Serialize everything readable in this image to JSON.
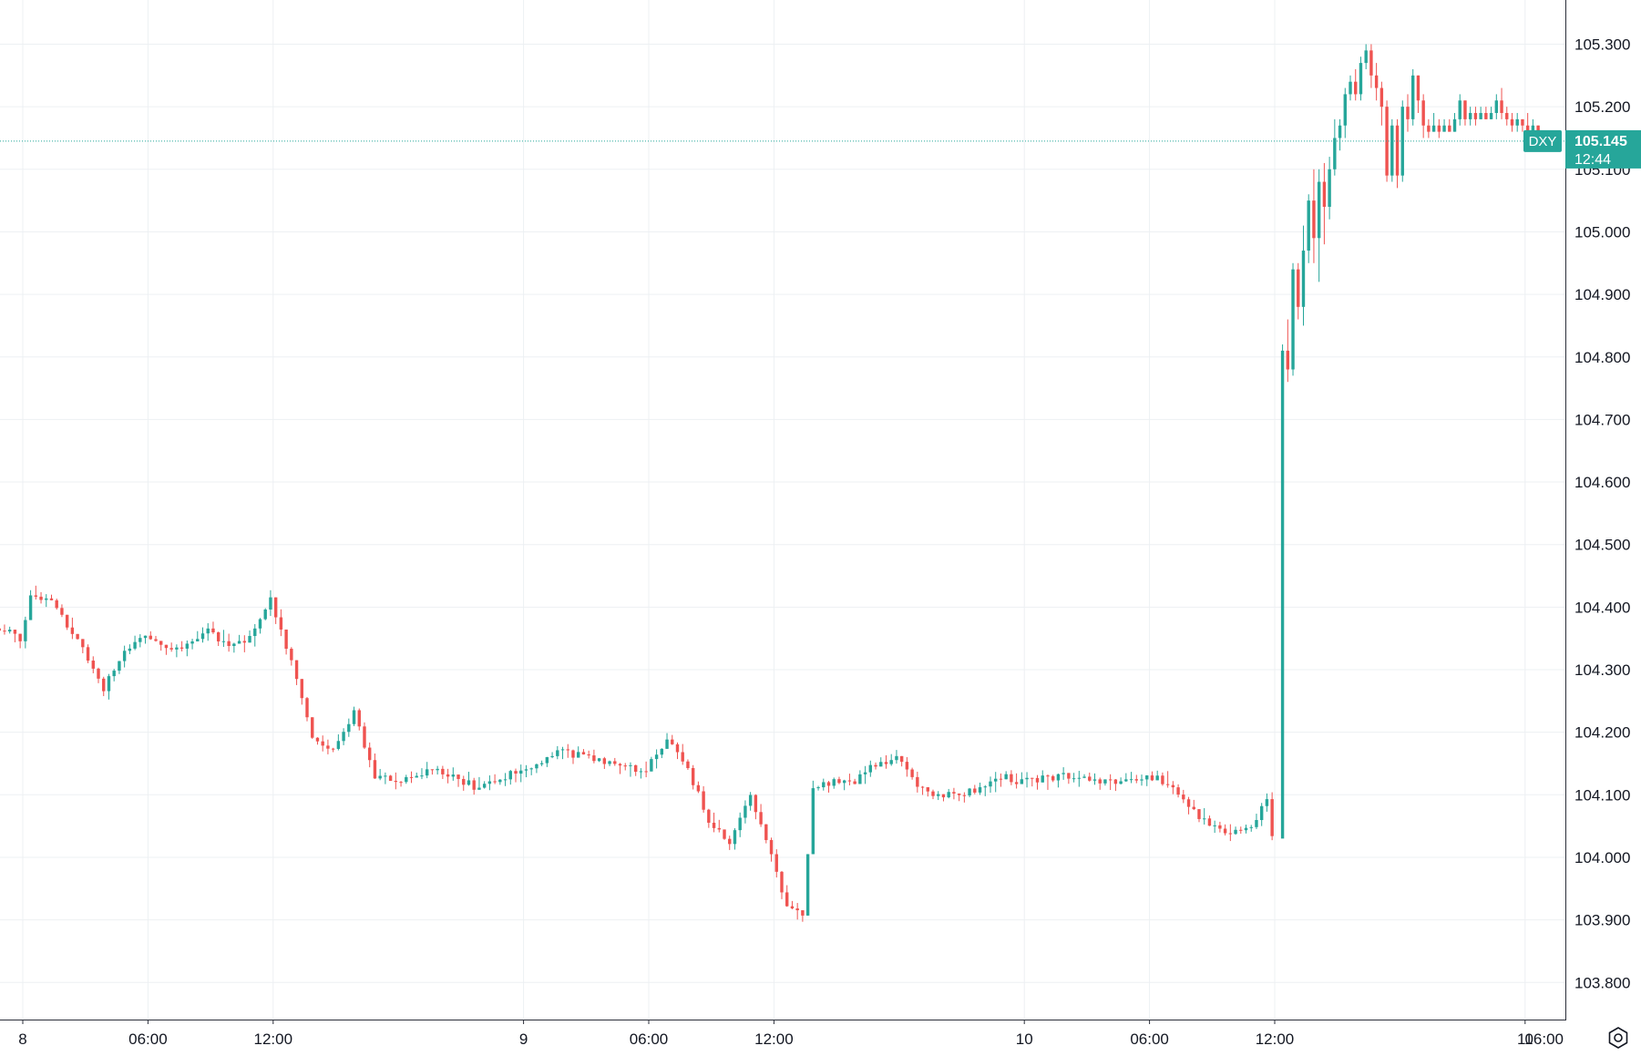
{
  "chart_data": {
    "type": "candlestick",
    "symbol": "DXY",
    "last_price": "105.145",
    "countdown": "12:44",
    "y_axis": {
      "ticks": [
        "103.800",
        "103.900",
        "104.000",
        "104.100",
        "104.200",
        "104.300",
        "104.400",
        "104.500",
        "104.600",
        "104.700",
        "104.800",
        "104.900",
        "105.000",
        "105.100",
        "105.200",
        "105.300"
      ],
      "range": [
        103.765,
        105.335
      ]
    },
    "x_axis": {
      "ticks": [
        "8",
        "06:00",
        "12:00",
        "9",
        "06:00",
        "12:00",
        "10",
        "06:00",
        "12:00",
        "11",
        "06:00"
      ]
    },
    "candle_interval": "15m",
    "grid": true,
    "colors": {
      "up": "#26a69a",
      "down": "#ef5350",
      "grid": "#edf0f3",
      "price_line": "#26a69a",
      "axis_text": "#131722"
    },
    "anchors": [
      [
        "8 -01:45",
        104.36
      ],
      [
        "8 -01:15",
        104.37
      ],
      [
        "8 00:00",
        104.35
      ],
      [
        "8 00:30",
        104.42
      ],
      [
        "8 01:30",
        104.41
      ],
      [
        "8 03:00",
        104.33
      ],
      [
        "8 04:00",
        104.27
      ],
      [
        "8 05:00",
        104.33
      ],
      [
        "8 06:00",
        104.35
      ],
      [
        "8 07:00",
        104.33
      ],
      [
        "8 08:00",
        104.34
      ],
      [
        "8 09:00",
        104.36
      ],
      [
        "8 10:00",
        104.34
      ],
      [
        "8 11:00",
        104.35
      ],
      [
        "8 12:00",
        104.41
      ],
      [
        "8 13:00",
        104.31
      ],
      [
        "8 14:00",
        104.19
      ],
      [
        "8 15:00",
        104.17
      ],
      [
        "8 16:00",
        104.23
      ],
      [
        "8 17:00",
        104.13
      ],
      [
        "8 18:00",
        104.12
      ],
      [
        "8 20:00",
        104.14
      ],
      [
        "8 22:00",
        104.11
      ],
      [
        "8 24:00",
        104.14
      ],
      [
        "9 02:00",
        104.17
      ],
      [
        "9 04:00",
        104.15
      ],
      [
        "9 06:00",
        104.14
      ],
      [
        "9 07:00",
        104.19
      ],
      [
        "9 08:00",
        104.14
      ],
      [
        "9 09:00",
        104.06
      ],
      [
        "9 10:00",
        104.02
      ],
      [
        "9 11:00",
        104.1
      ],
      [
        "9 12:00",
        104.0
      ],
      [
        "9 12:45",
        103.92
      ],
      [
        "9 13:30",
        103.91
      ],
      [
        "9 14:00",
        104.11
      ],
      [
        "9 15:00",
        104.12
      ],
      [
        "9 16:00",
        104.12
      ],
      [
        "9 17:00",
        104.15
      ],
      [
        "9 18:00",
        104.16
      ],
      [
        "9 19:00",
        104.11
      ],
      [
        "9 20:00",
        104.1
      ],
      [
        "9 21:00",
        104.1
      ],
      [
        "9 22:00",
        104.11
      ],
      [
        "9 23:00",
        104.13
      ],
      [
        "9 24:00",
        104.12
      ],
      [
        "10 02:00",
        104.13
      ],
      [
        "10 04:00",
        104.12
      ],
      [
        "10 06:00",
        104.13
      ],
      [
        "10 07:00",
        104.12
      ],
      [
        "10 08:00",
        104.08
      ],
      [
        "10 09:00",
        104.05
      ],
      [
        "10 10:00",
        104.04
      ],
      [
        "10 11:00",
        104.05
      ],
      [
        "10 11:45",
        104.09
      ],
      [
        "10 12:00",
        104.03
      ]
    ],
    "tail": [
      [
        "10 12:15",
        104.03,
        104.81,
        104.64,
        104.82
      ],
      [
        "10 12:30",
        104.81,
        104.78,
        104.76,
        104.86
      ],
      [
        "10 12:45",
        104.78,
        104.94,
        104.77,
        104.95
      ],
      [
        "10 13:00",
        104.94,
        104.88,
        104.86,
        104.95
      ],
      [
        "10 13:15",
        104.88,
        104.97,
        104.85,
        105.01
      ],
      [
        "10 13:30",
        104.97,
        105.05,
        104.95,
        105.06
      ],
      [
        "10 13:45",
        105.05,
        104.99,
        104.95,
        105.1
      ],
      [
        "10 14:00",
        104.99,
        105.08,
        104.92,
        105.1
      ],
      [
        "10 14:15",
        105.08,
        105.04,
        104.98,
        105.11
      ],
      [
        "10 14:30",
        105.04,
        105.1,
        105.02,
        105.12
      ],
      [
        "10 14:45",
        105.1,
        105.15,
        105.09,
        105.18
      ],
      [
        "10 15:00",
        105.15,
        105.17,
        105.13,
        105.18
      ],
      [
        "10 15:15",
        105.17,
        105.22,
        105.15,
        105.23
      ],
      [
        "10 15:30",
        105.22,
        105.24,
        105.21,
        105.25
      ],
      [
        "10 15:45",
        105.24,
        105.22,
        105.21,
        105.26
      ],
      [
        "10 16:00",
        105.22,
        105.27,
        105.21,
        105.28
      ],
      [
        "10 16:15",
        105.27,
        105.29,
        105.26,
        105.3
      ],
      [
        "10 16:30",
        105.29,
        105.25,
        105.23,
        105.3
      ],
      [
        "10 16:45",
        105.25,
        105.23,
        105.21,
        105.27
      ],
      [
        "10 17:00",
        105.23,
        105.2,
        105.17,
        105.24
      ],
      [
        "10 17:15",
        105.2,
        105.09,
        105.08,
        105.21
      ],
      [
        "10 17:30",
        105.09,
        105.17,
        105.08,
        105.18
      ],
      [
        "10 17:45",
        105.17,
        105.09,
        105.07,
        105.18
      ],
      [
        "10 18:00",
        105.09,
        105.2,
        105.08,
        105.21
      ],
      [
        "10 18:15",
        105.2,
        105.18,
        105.16,
        105.22
      ],
      [
        "10 18:30",
        105.18,
        105.25,
        105.17,
        105.26
      ],
      [
        "10 18:45",
        105.25,
        105.21,
        105.19,
        105.25
      ],
      [
        "10 19:00",
        105.21,
        105.17,
        105.15,
        105.22
      ],
      [
        "10 19:15",
        105.17,
        105.16,
        105.15,
        105.18
      ],
      [
        "10 19:30",
        105.16,
        105.17,
        105.16,
        105.19
      ],
      [
        "10 19:45",
        105.17,
        105.16,
        105.15,
        105.18
      ],
      [
        "10 20:00",
        105.16,
        105.17,
        105.16,
        105.18
      ],
      [
        "10 20:15",
        105.17,
        105.16,
        105.16,
        105.18
      ],
      [
        "10 20:30",
        105.16,
        105.18,
        105.16,
        105.19
      ],
      [
        "10 20:45",
        105.18,
        105.21,
        105.17,
        105.22
      ],
      [
        "10 21:00",
        105.21,
        105.18,
        105.17,
        105.21
      ],
      [
        "10 21:15",
        105.18,
        105.19,
        105.17,
        105.2
      ],
      [
        "10 21:30",
        105.19,
        105.18,
        105.17,
        105.2
      ],
      [
        "10 21:45",
        105.18,
        105.19,
        105.18,
        105.2
      ],
      [
        "10 22:00",
        105.19,
        105.18,
        105.18,
        105.2
      ],
      [
        "10 22:15",
        105.18,
        105.19,
        105.18,
        105.2
      ],
      [
        "10 22:30",
        105.19,
        105.21,
        105.18,
        105.22
      ],
      [
        "10 22:45",
        105.21,
        105.19,
        105.18,
        105.23
      ],
      [
        "10 23:00",
        105.19,
        105.18,
        105.17,
        105.2
      ],
      [
        "10 23:15",
        105.18,
        105.17,
        105.16,
        105.19
      ],
      [
        "10 23:30",
        105.17,
        105.18,
        105.16,
        105.19
      ],
      [
        "10 23:45",
        105.18,
        105.17,
        105.16,
        105.18
      ],
      [
        "11 00:00",
        105.17,
        105.16,
        105.15,
        105.19
      ],
      [
        "11 00:15",
        105.16,
        105.17,
        105.15,
        105.18
      ],
      [
        "11 00:30",
        105.17,
        105.15,
        105.14,
        105.17
      ],
      [
        "11 00:45",
        105.15,
        105.16,
        105.14,
        105.16
      ],
      [
        "11 01:00",
        105.16,
        105.15,
        105.14,
        105.16
      ],
      [
        "11 01:15",
        105.15,
        105.145,
        105.14,
        105.15
      ]
    ]
  },
  "ui": {
    "settings_icon": "hexagon-gear-icon"
  }
}
